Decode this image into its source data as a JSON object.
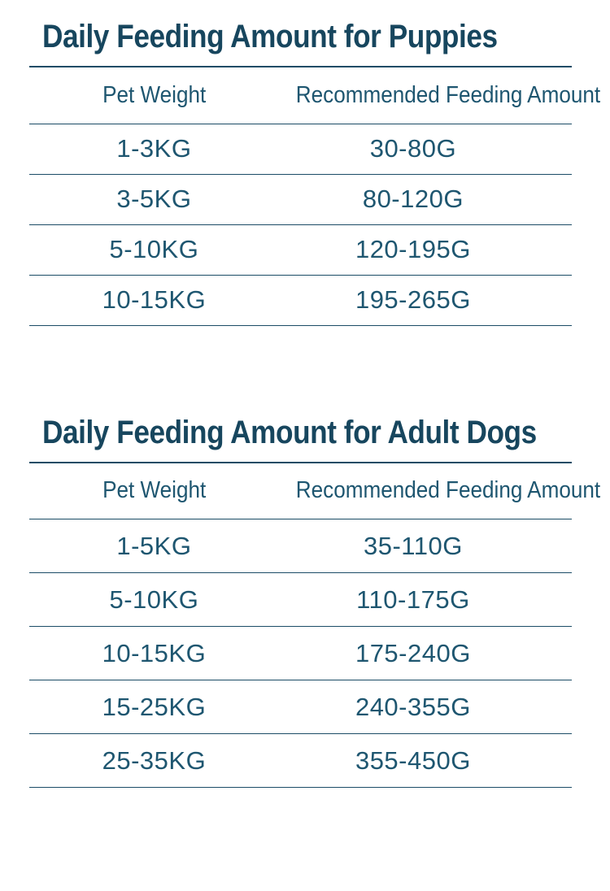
{
  "page": {
    "background": "#ffffff",
    "accent_color": "#1b4c66",
    "title_color": "#17465e",
    "text_color": "#1e5670"
  },
  "sections": [
    {
      "title": "Daily Feeding Amount for Puppies",
      "columns": [
        "Pet Weight",
        "Recommended Feeding Amount"
      ],
      "rows": [
        [
          "1-3KG",
          "30-80G"
        ],
        [
          "3-5KG",
          "80-120G"
        ],
        [
          "5-10KG",
          "120-195G"
        ],
        [
          "10-15KG",
          "195-265G"
        ]
      ]
    },
    {
      "title": "Daily Feeding Amount for Adult Dogs",
      "columns": [
        "Pet Weight",
        "Recommended Feeding Amount"
      ],
      "rows": [
        [
          "1-5KG",
          "35-110G"
        ],
        [
          "5-10KG",
          "110-175G"
        ],
        [
          "10-15KG",
          "175-240G"
        ],
        [
          "15-25KG",
          "240-355G"
        ],
        [
          "25-35KG",
          "355-450G"
        ]
      ]
    }
  ]
}
